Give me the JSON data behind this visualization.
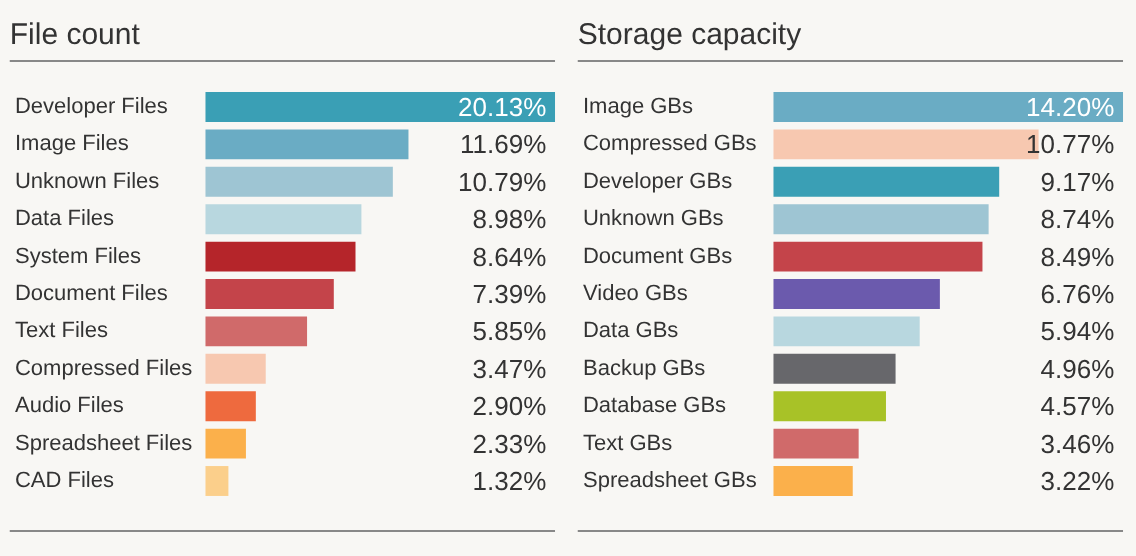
{
  "chart_data": [
    {
      "type": "bar",
      "orientation": "horizontal",
      "title": "File count",
      "categories": [
        "Developer Files",
        "Image Files",
        "Unknown Files",
        "Data Files",
        "System Files",
        "Document Files",
        "Text Files",
        "Compressed Files",
        "Audio Files",
        "Spreadsheet Files",
        "CAD Files"
      ],
      "values": [
        20.13,
        11.69,
        10.79,
        8.98,
        8.64,
        7.39,
        5.85,
        3.47,
        2.9,
        2.33,
        1.32
      ],
      "value_labels": [
        "20.13%",
        "11.69%",
        "10.79%",
        "8.98%",
        "8.64%",
        "7.39%",
        "5.85%",
        "3.47%",
        "2.90%",
        "2.33%",
        "1.32%"
      ],
      "colors": [
        "#3a9fb5",
        "#6aacc4",
        "#9ec5d3",
        "#b8d7df",
        "#b5252a",
        "#c4444a",
        "#d06a6a",
        "#f7c8b0",
        "#ee6a3e",
        "#fbb04b",
        "#fbcf8b"
      ]
    },
    {
      "type": "bar",
      "orientation": "horizontal",
      "title": "Storage capacity",
      "categories": [
        "Image GBs",
        "Compressed GBs",
        "Developer GBs",
        "Unknown GBs",
        "Document GBs",
        "Video GBs",
        "Data GBs",
        "Backup GBs",
        "Database GBs",
        "Text GBs",
        "Spreadsheet GBs"
      ],
      "values": [
        14.2,
        10.77,
        9.17,
        8.74,
        8.49,
        6.76,
        5.94,
        4.96,
        4.57,
        3.46,
        3.22
      ],
      "value_labels": [
        "14.20%",
        "10.77%",
        "9.17%",
        "8.74%",
        "8.49%",
        "6.76%",
        "5.94%",
        "4.96%",
        "4.57%",
        "3.46%",
        "3.22%"
      ],
      "colors": [
        "#6aacc4",
        "#f7c8b0",
        "#3a9fb5",
        "#9ec5d3",
        "#c4444a",
        "#6b5aad",
        "#b8d7df",
        "#67676b",
        "#a8c227",
        "#d06a6a",
        "#fbb04b"
      ]
    }
  ]
}
